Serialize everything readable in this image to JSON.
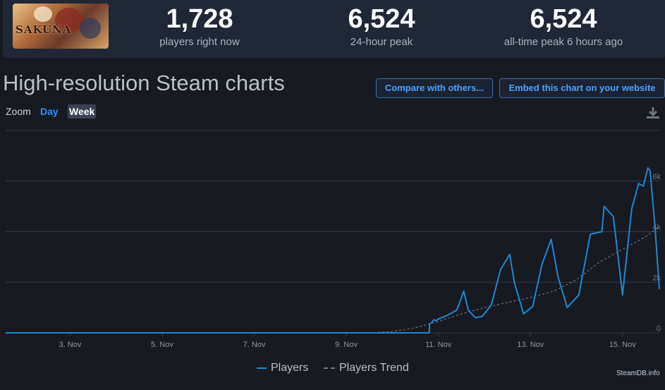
{
  "game": {
    "logo_text": "SAKUNA"
  },
  "stats": [
    {
      "value": "1,728",
      "label": "players right now"
    },
    {
      "value": "6,524",
      "label": "24-hour peak"
    },
    {
      "value": "6,524",
      "label": "all-time peak 6 hours ago"
    }
  ],
  "page": {
    "heading": "High-resolution Steam charts",
    "compare_button": "Compare with others...",
    "embed_button": "Embed this chart on your website"
  },
  "zoom": {
    "label": "Zoom",
    "options": [
      "Day",
      "Week"
    ],
    "selected": "Week"
  },
  "credits": "SteamDB.info",
  "colors": {
    "players": "#1f88d0",
    "trend": "#6d7480",
    "accent": "#2b8fff"
  },
  "chart_data": {
    "type": "line",
    "title": "",
    "xlabel": "",
    "ylabel": "",
    "x_ticks": [
      "3. Nov",
      "5. Nov",
      "7. Nov",
      "9. Nov",
      "11. Nov",
      "13. Nov",
      "15. Nov"
    ],
    "x_tick_days": [
      3,
      5,
      7,
      9,
      11,
      13,
      15
    ],
    "xlim": [
      1.6,
      15.8
    ],
    "y_ticks": [
      0,
      2000,
      4000,
      6000
    ],
    "y_tick_labels": [
      "0",
      "2k",
      "4k",
      "6k"
    ],
    "ylim": [
      0,
      8000
    ],
    "grid": true,
    "legend": "bottom",
    "series": [
      {
        "name": "Players",
        "style": "solid",
        "x": [
          1.6,
          10.8,
          10.81,
          10.85,
          10.9,
          10.95,
          11.0,
          11.2,
          11.4,
          11.55,
          11.65,
          11.8,
          11.95,
          12.15,
          12.35,
          12.55,
          12.65,
          12.85,
          13.05,
          13.25,
          13.45,
          13.6,
          13.8,
          14.05,
          14.3,
          14.55,
          14.6,
          14.8,
          15.0,
          15.2,
          15.35,
          15.45,
          15.55,
          15.6,
          15.7,
          15.8
        ],
        "y": [
          0,
          0,
          350,
          400,
          520,
          480,
          550,
          700,
          900,
          1650,
          900,
          600,
          650,
          1100,
          2500,
          3100,
          2000,
          750,
          1050,
          2700,
          3700,
          2200,
          1000,
          1500,
          3900,
          4000,
          5000,
          4600,
          1500,
          4900,
          5900,
          5800,
          6524,
          6400,
          4300,
          1728
        ]
      },
      {
        "name": "Players Trend",
        "style": "dashed",
        "x": [
          1.6,
          9.5,
          10.0,
          10.5,
          11.0,
          11.5,
          12.0,
          12.5,
          13.0,
          13.5,
          14.0,
          14.5,
          15.0,
          15.5,
          15.8
        ],
        "y": [
          0,
          0,
          50,
          200,
          450,
          750,
          1000,
          1200,
          1400,
          1650,
          2100,
          2800,
          3300,
          3800,
          4200
        ]
      }
    ]
  }
}
